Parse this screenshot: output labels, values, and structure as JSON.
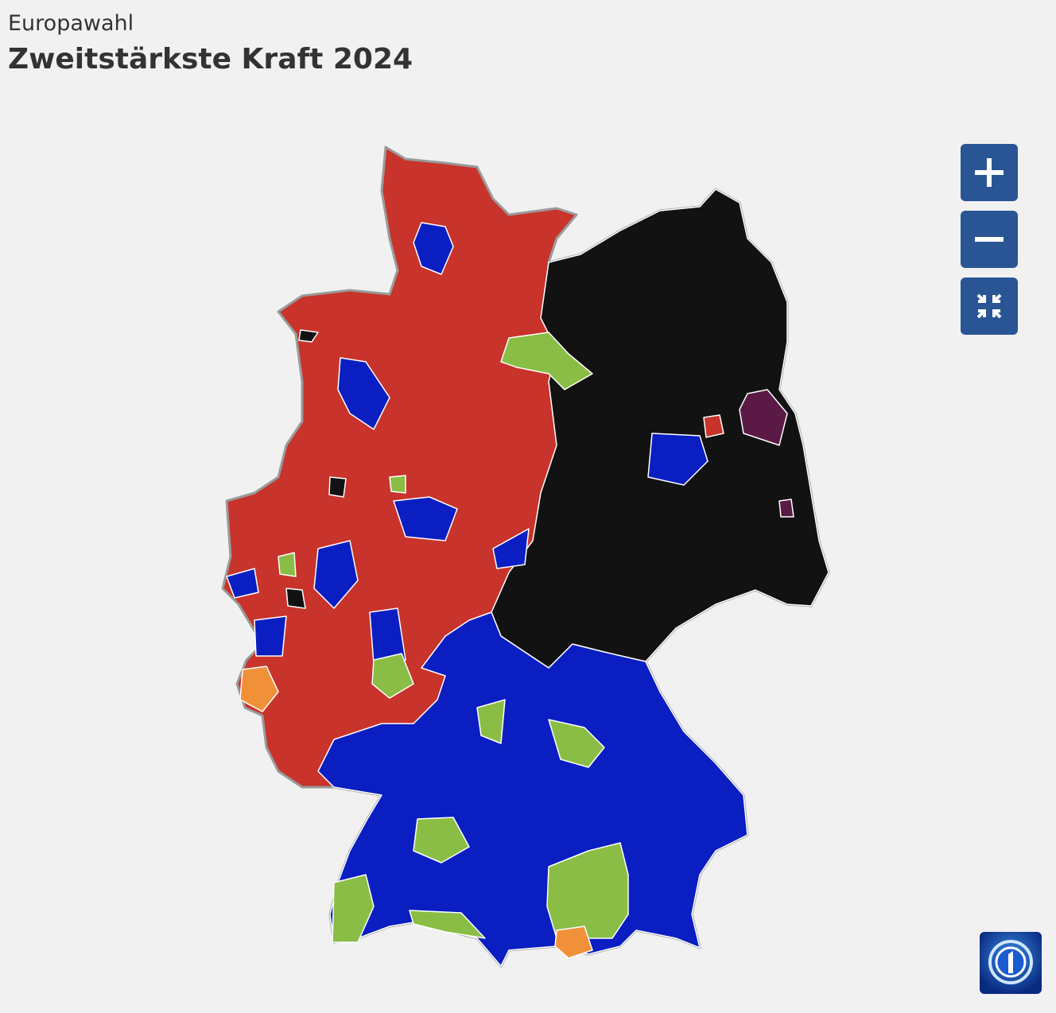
{
  "header": {
    "subtitle": "Europawahl",
    "title": "Zweitstärkste Kraft 2024"
  }
}
